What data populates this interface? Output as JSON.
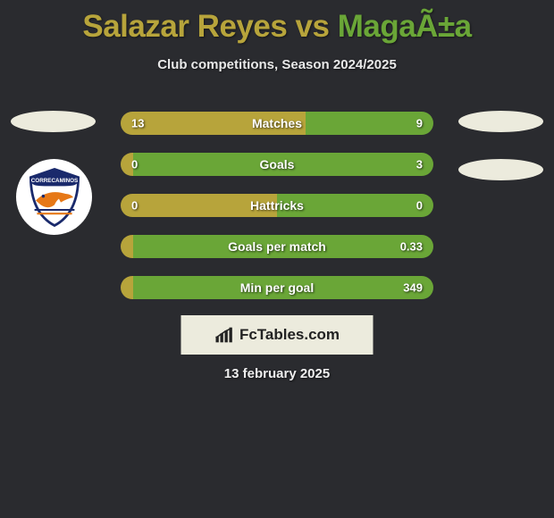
{
  "colors": {
    "background": "#2a2b2f",
    "title_p1": "#b7a43b",
    "title_p2": "#6aa637",
    "subtitle": "#e8e8e8",
    "bar_left": "#b7a43b",
    "bar_right": "#6aa637",
    "oval": "#ecebdd",
    "brand_bg": "#ecebdd",
    "brand_text": "#222222",
    "bar_text": "#ffffff"
  },
  "title": {
    "p1": "Salazar Reyes",
    "vs": " vs ",
    "p2": "MagaÃ±a"
  },
  "subtitle": "Club competitions, Season 2024/2025",
  "bars": [
    {
      "label": "Matches",
      "left": "13",
      "right": "9",
      "left_pct": 59
    },
    {
      "label": "Goals",
      "left": "0",
      "right": "3",
      "left_pct": 4
    },
    {
      "label": "Hattricks",
      "left": "0",
      "right": "0",
      "left_pct": 50
    },
    {
      "label": "Goals per match",
      "left": "",
      "right": "0.33",
      "left_pct": 4
    },
    {
      "label": "Min per goal",
      "left": "",
      "right": "349",
      "left_pct": 4
    }
  ],
  "brand": "FcTables.com",
  "date": "13 february 2025"
}
